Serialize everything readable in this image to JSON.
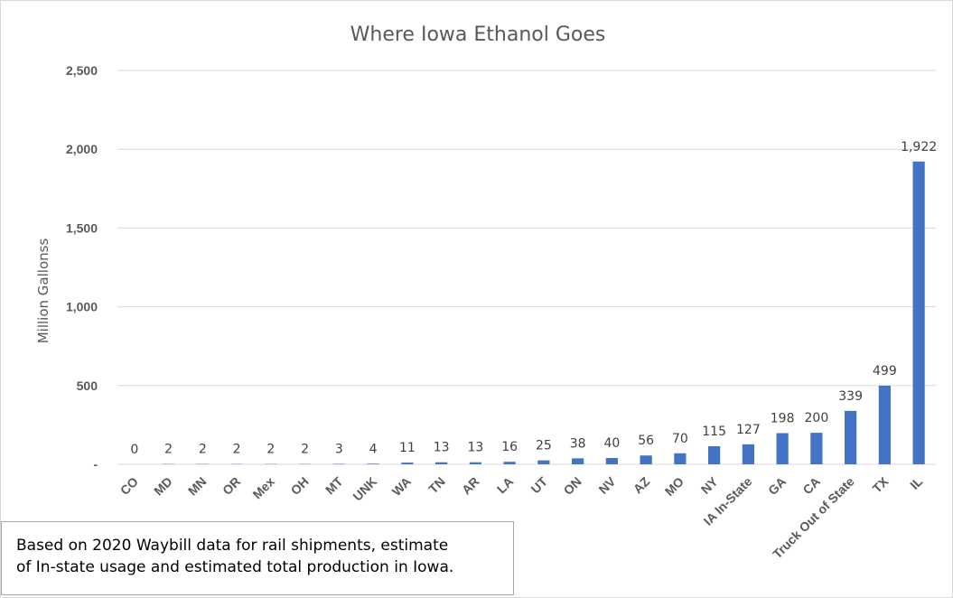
{
  "chart_data": {
    "type": "bar",
    "title": "Where Iowa Ethanol Goes",
    "ylabel": "Million Gallonss",
    "xlabel": "",
    "ylim": [
      0,
      2500
    ],
    "yticks": [
      0,
      500,
      1000,
      1500,
      2000,
      2500
    ],
    "ytick_labels": [
      "-",
      "500",
      "1,000",
      "1,500",
      "2,000",
      "2,500"
    ],
    "grid": true,
    "legend": "none",
    "color": "#4472c4",
    "categories": [
      "CO",
      "MD",
      "MN",
      "OR",
      "Mex",
      "OH",
      "MT",
      "UNK",
      "WA",
      "TN",
      "AR",
      "LA",
      "UT",
      "ON",
      "NV",
      "AZ",
      "MO",
      "NY",
      "IA In-State",
      "GA",
      "CA",
      "Truck Out of State",
      "TX",
      "IL"
    ],
    "values": [
      0,
      2,
      2,
      2,
      2,
      2,
      3,
      4,
      11,
      13,
      13,
      16,
      25,
      38,
      40,
      56,
      70,
      115,
      127,
      198,
      200,
      339,
      499,
      1922
    ],
    "value_labels": [
      "0",
      "2",
      "2",
      "2",
      "2",
      "2",
      "3",
      "4",
      "11",
      "13",
      "13",
      "16",
      "25",
      "38",
      "40",
      "56",
      "70",
      "115",
      "127",
      "198",
      "200",
      "339",
      "499",
      "1,922"
    ]
  },
  "note": {
    "line1": "Based on 2020 Waybill data for rail shipments, estimate",
    "line2": "of In-state usage and estimated total production in Iowa."
  }
}
